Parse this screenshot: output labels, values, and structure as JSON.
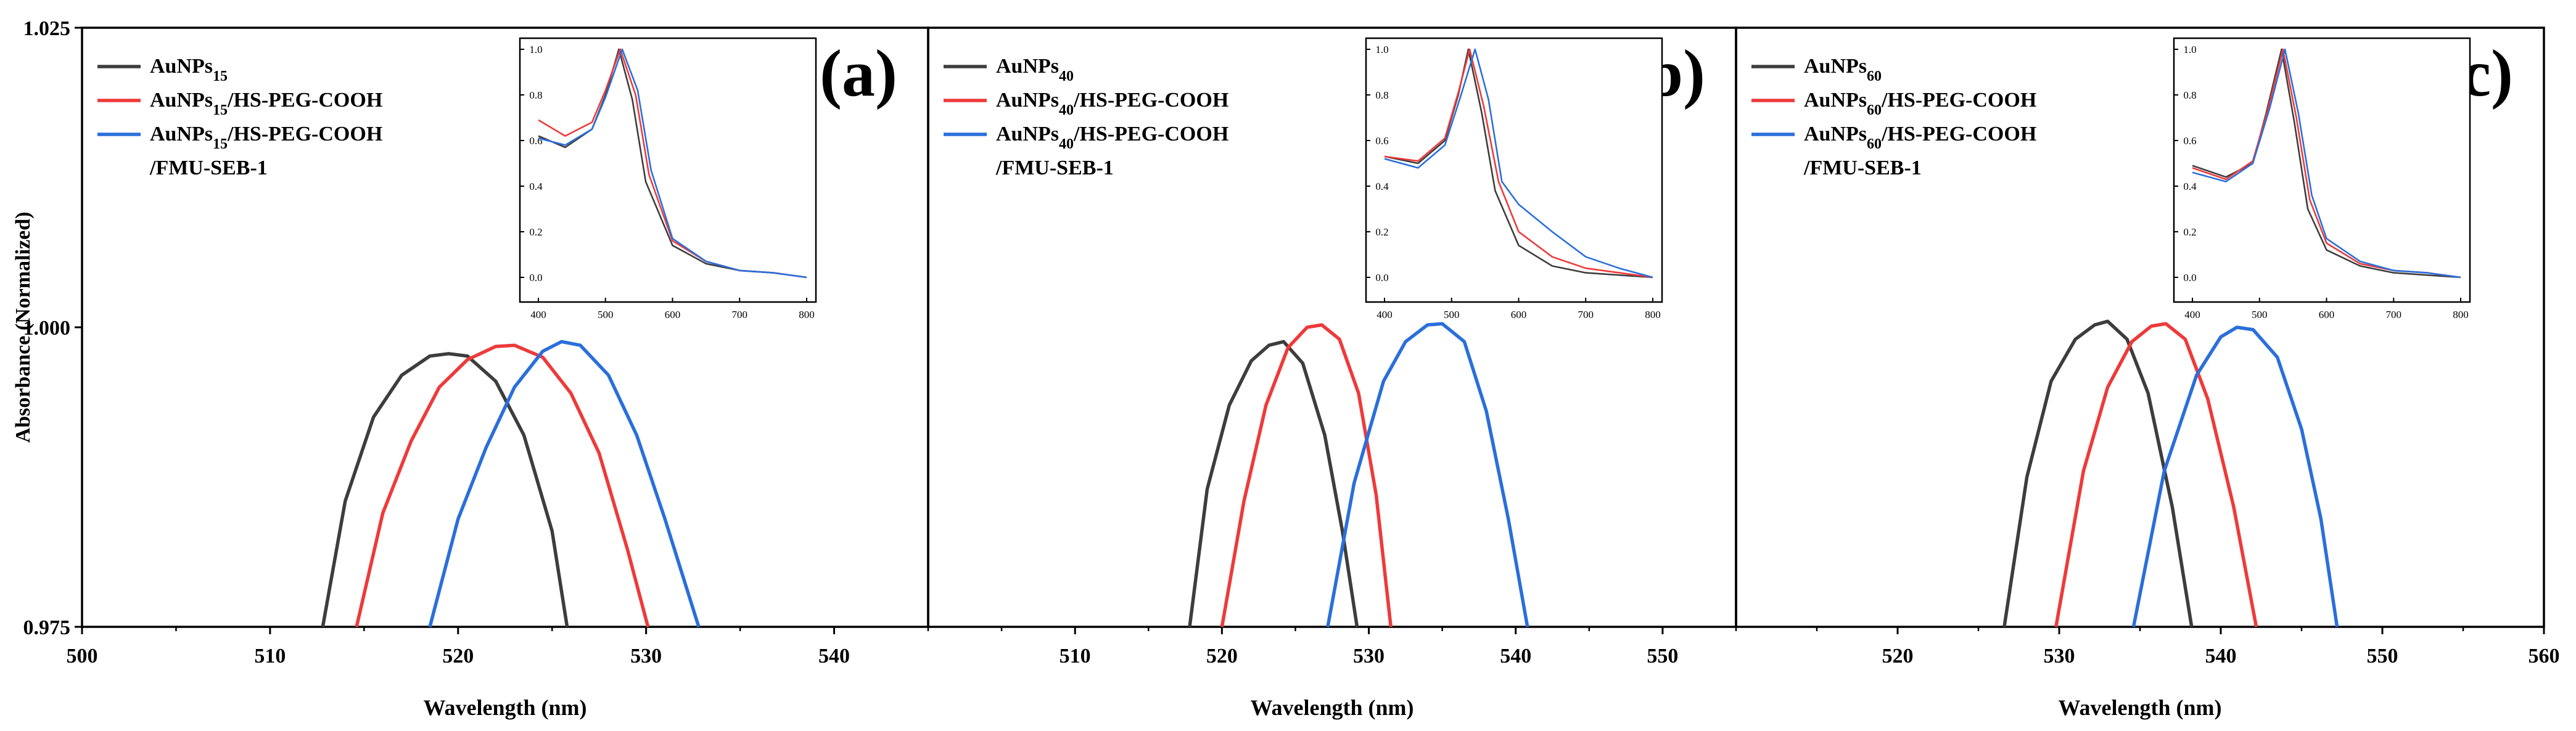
{
  "figure": {
    "ylabel": "Absorbance (Normalized)",
    "ylim": [
      0.975,
      1.025
    ],
    "yticks": [
      "0.975",
      "1.000",
      "1.025"
    ]
  },
  "colors": {
    "black": "#3d3d3d",
    "red": "#ee3a3a",
    "blue": "#2a6fdb"
  },
  "chart_data": [
    {
      "type": "line",
      "panel": "(a)",
      "title": "(a)",
      "xlabel": "Wavelength (nm)",
      "xlim": [
        500,
        545
      ],
      "xticks": [
        "500",
        "510",
        "520",
        "530",
        "540"
      ],
      "ylabel": "Absorbance (Normalized)",
      "ylim": [
        0.975,
        1.025
      ],
      "legend": [
        {
          "main": "AuNPs",
          "sub": "15",
          "rest": ""
        },
        {
          "main": "AuNPs",
          "sub": "15",
          "rest": "/HS-PEG-COOH"
        },
        {
          "main": "AuNPs",
          "sub": "15",
          "rest": "/HS-PEG-COOH",
          "line2": "/FMU-SEB-1"
        }
      ],
      "series": [
        {
          "name": "AuNPs15",
          "color": "#3d3d3d",
          "x": [
            512.8,
            514,
            515.5,
            517,
            518.5,
            519.5,
            520.5,
            522,
            523.5,
            525,
            525.8
          ],
          "y": [
            0.975,
            0.9855,
            0.9925,
            0.996,
            0.9976,
            0.9978,
            0.9976,
            0.9955,
            0.991,
            0.983,
            0.975
          ]
        },
        {
          "name": "AuNPs15/HS-PEG-COOH",
          "color": "#ee3a3a",
          "x": [
            514.6,
            516,
            517.5,
            519,
            520.5,
            522,
            523,
            524.5,
            526,
            527.5,
            529,
            530.1
          ],
          "y": [
            0.975,
            0.9845,
            0.9905,
            0.995,
            0.9973,
            0.9984,
            0.9985,
            0.9975,
            0.9945,
            0.9895,
            0.9815,
            0.975
          ]
        },
        {
          "name": "AuNPs15/HS-PEG-COOH/FMU-SEB-1",
          "color": "#2a6fdb",
          "x": [
            518.5,
            520,
            521.5,
            523,
            524.5,
            525.5,
            526.5,
            528,
            529.5,
            531,
            532.8
          ],
          "y": [
            0.975,
            0.984,
            0.99,
            0.995,
            0.998,
            0.9988,
            0.9985,
            0.996,
            0.991,
            0.984,
            0.975
          ]
        }
      ],
      "inset": {
        "xlim": [
          400,
          800
        ],
        "ylim": [
          0.0,
          1.0
        ],
        "xticks": [
          "400",
          "500",
          "600",
          "700",
          "800"
        ],
        "yticks": [
          "0.0",
          "0.2",
          "0.4",
          "0.6",
          "0.8",
          "1.0"
        ],
        "series": [
          {
            "color": "#3d3d3d",
            "x": [
              400,
              440,
              480,
              500,
              520,
              540,
              560,
              600,
              650,
              700,
              750,
              800
            ],
            "y": [
              0.62,
              0.57,
              0.65,
              0.8,
              1.0,
              0.78,
              0.42,
              0.14,
              0.06,
              0.03,
              0.02,
              0.0
            ]
          },
          {
            "color": "#ee3a3a",
            "x": [
              400,
              440,
              480,
              500,
              522,
              545,
              565,
              600,
              650,
              700,
              750,
              800
            ],
            "y": [
              0.69,
              0.62,
              0.68,
              0.82,
              1.0,
              0.8,
              0.45,
              0.16,
              0.07,
              0.03,
              0.02,
              0.0
            ]
          },
          {
            "color": "#2a6fdb",
            "x": [
              400,
              440,
              480,
              500,
              525,
              548,
              568,
              600,
              650,
              700,
              750,
              800
            ],
            "y": [
              0.61,
              0.58,
              0.65,
              0.79,
              1.0,
              0.82,
              0.47,
              0.17,
              0.07,
              0.03,
              0.02,
              0.0
            ]
          }
        ]
      }
    },
    {
      "type": "line",
      "panel": "(b)",
      "title": "(b)",
      "xlabel": "Wavelength (nm)",
      "xlim": [
        500,
        555
      ],
      "xticks": [
        "510",
        "520",
        "530",
        "540",
        "550"
      ],
      "ylabel": "Absorbance (Normalized)",
      "ylim": [
        0.975,
        1.025
      ],
      "legend": [
        {
          "main": "AuNPs",
          "sub": "40",
          "rest": ""
        },
        {
          "main": "AuNPs",
          "sub": "40",
          "rest": "/HS-PEG-COOH"
        },
        {
          "main": "AuNPs",
          "sub": "40",
          "rest": "/HS-PEG-COOH",
          "line2": "/FMU-SEB-1"
        }
      ],
      "series": [
        {
          "name": "AuNPs40",
          "color": "#3d3d3d",
          "x": [
            517.8,
            519,
            520.5,
            522,
            523.2,
            524.2,
            525.5,
            527,
            528.2,
            529.2
          ],
          "y": [
            0.975,
            0.9865,
            0.9935,
            0.9972,
            0.9985,
            0.9988,
            0.997,
            0.991,
            0.983,
            0.975
          ]
        },
        {
          "name": "AuNPs40/HS-PEG-COOH",
          "color": "#ee3a3a",
          "x": [
            520,
            521.5,
            523,
            524.5,
            525.8,
            526.8,
            528,
            529.3,
            530.5,
            531.5
          ],
          "y": [
            0.975,
            0.9855,
            0.9935,
            0.9983,
            1.0,
            1.0002,
            0.999,
            0.9945,
            0.986,
            0.975
          ]
        },
        {
          "name": "AuNPs40/HS-PEG-COOH/FMU-SEB-1",
          "color": "#2a6fdb",
          "x": [
            527.2,
            529,
            531,
            532.5,
            534,
            535,
            536.5,
            538,
            539.5,
            540.8
          ],
          "y": [
            0.975,
            0.987,
            0.9955,
            0.9988,
            1.0002,
            1.0003,
            0.9988,
            0.993,
            0.984,
            0.975
          ]
        }
      ],
      "inset": {
        "xlim": [
          400,
          800
        ],
        "ylim": [
          0.0,
          1.0
        ],
        "xticks": [
          "400",
          "500",
          "600",
          "700",
          "800"
        ],
        "yticks": [
          "0.0",
          "0.2",
          "0.4",
          "0.6",
          "0.8",
          "1.0"
        ],
        "series": [
          {
            "color": "#3d3d3d",
            "x": [
              400,
              450,
              490,
              510,
              525,
              545,
              565,
              600,
              650,
              700,
              750,
              800
            ],
            "y": [
              0.53,
              0.5,
              0.6,
              0.8,
              1.0,
              0.72,
              0.38,
              0.14,
              0.05,
              0.02,
              0.01,
              0.0
            ]
          },
          {
            "color": "#ee3a3a",
            "x": [
              400,
              450,
              490,
              510,
              527,
              548,
              570,
              600,
              650,
              700,
              750,
              800
            ],
            "y": [
              0.53,
              0.51,
              0.61,
              0.81,
              1.0,
              0.75,
              0.42,
              0.2,
              0.09,
              0.04,
              0.02,
              0.0
            ]
          },
          {
            "color": "#2a6fdb",
            "x": [
              400,
              450,
              490,
              512,
              535,
              555,
              575,
              600,
              650,
              700,
              750,
              800
            ],
            "y": [
              0.52,
              0.48,
              0.58,
              0.78,
              1.0,
              0.78,
              0.42,
              0.32,
              0.2,
              0.09,
              0.04,
              0.0
            ]
          }
        ]
      }
    },
    {
      "type": "line",
      "panel": "(c)",
      "title": "(c)",
      "xlabel": "Wavelength (nm)",
      "xlim": [
        510,
        560
      ],
      "xticks": [
        "520",
        "530",
        "540",
        "550",
        "560"
      ],
      "ylabel": "Absorbance (Normalized)",
      "ylim": [
        0.975,
        1.025
      ],
      "legend": [
        {
          "main": "AuNPs",
          "sub": "60",
          "rest": ""
        },
        {
          "main": "AuNPs",
          "sub": "60",
          "rest": "/HS-PEG-COOH"
        },
        {
          "main": "AuNPs",
          "sub": "60",
          "rest": "/HS-PEG-COOH",
          "line2": "/FMU-SEB-1"
        }
      ],
      "series": [
        {
          "name": "AuNPs60",
          "color": "#3d3d3d",
          "x": [
            526.6,
            528,
            529.5,
            531,
            532.2,
            533,
            534.2,
            535.5,
            537,
            538.2
          ],
          "y": [
            0.975,
            0.9875,
            0.9955,
            0.999,
            1.0002,
            1.0005,
            0.999,
            0.9945,
            0.985,
            0.975
          ]
        },
        {
          "name": "AuNPs60/HS-PEG-COOH",
          "color": "#ee3a3a",
          "x": [
            529.8,
            531.5,
            533,
            534.5,
            535.7,
            536.6,
            537.8,
            539.2,
            540.8,
            542.2
          ],
          "y": [
            0.975,
            0.988,
            0.995,
            0.9988,
            1.0001,
            1.0003,
            0.999,
            0.994,
            0.985,
            0.975
          ]
        },
        {
          "name": "AuNPs60/HS-PEG-COOH/FMU-SEB-1",
          "color": "#2a6fdb",
          "x": [
            534.6,
            536.5,
            538.5,
            540,
            541,
            542,
            543.5,
            545,
            546.2,
            547.2
          ],
          "y": [
            0.975,
            0.988,
            0.996,
            0.9992,
            1.0,
            0.9998,
            0.9975,
            0.9915,
            0.984,
            0.975
          ]
        }
      ],
      "inset": {
        "xlim": [
          400,
          800
        ],
        "ylim": [
          0.0,
          1.0
        ],
        "xticks": [
          "400",
          "500",
          "600",
          "700",
          "800"
        ],
        "yticks": [
          "0.0",
          "0.2",
          "0.4",
          "0.6",
          "0.8",
          "1.0"
        ],
        "series": [
          {
            "color": "#3d3d3d",
            "x": [
              400,
              450,
              490,
              510,
              533,
              552,
              572,
              600,
              650,
              700,
              750,
              800
            ],
            "y": [
              0.49,
              0.44,
              0.5,
              0.72,
              1.0,
              0.68,
              0.3,
              0.12,
              0.05,
              0.02,
              0.01,
              0.0
            ]
          },
          {
            "color": "#ee3a3a",
            "x": [
              400,
              450,
              490,
              512,
              535,
              555,
              575,
              600,
              650,
              700,
              750,
              800
            ],
            "y": [
              0.48,
              0.43,
              0.51,
              0.73,
              1.0,
              0.7,
              0.34,
              0.15,
              0.06,
              0.03,
              0.02,
              0.0
            ]
          },
          {
            "color": "#2a6fdb",
            "x": [
              400,
              450,
              490,
              515,
              538,
              558,
              578,
              600,
              650,
              700,
              750,
              800
            ],
            "y": [
              0.46,
              0.42,
              0.5,
              0.74,
              1.0,
              0.72,
              0.36,
              0.17,
              0.07,
              0.03,
              0.02,
              0.0
            ]
          }
        ]
      }
    }
  ]
}
